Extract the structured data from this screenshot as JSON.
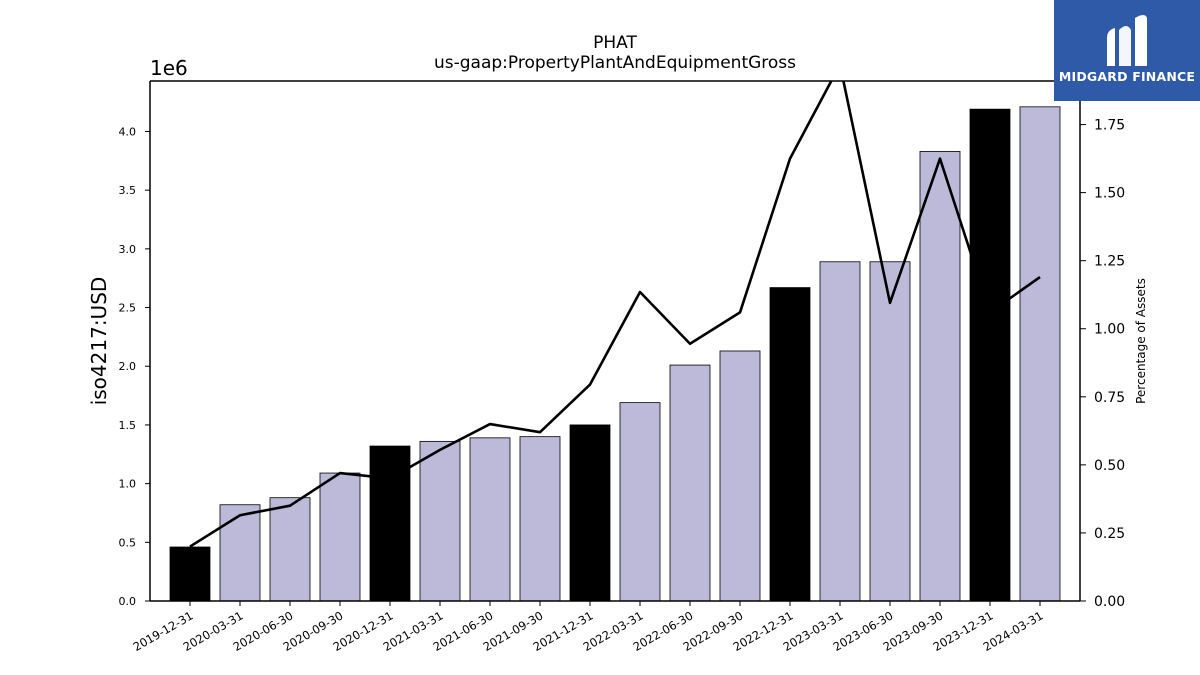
{
  "brand": {
    "name": "MIDGARD FINANCE",
    "bg_color": "#2e5aa8"
  },
  "chart_data": {
    "type": "bar",
    "title": "PHAT",
    "subtitle": "us-gaap:PropertyPlantAndEquipmentGross",
    "ylabel": "iso4217:USD",
    "y2label": "Percentage of Assets",
    "y_scale_label": "1e6",
    "categories": [
      "2019-12-31",
      "2020-03-31",
      "2020-06-30",
      "2020-09-30",
      "2020-12-31",
      "2021-03-31",
      "2021-06-30",
      "2021-09-30",
      "2021-12-31",
      "2022-03-31",
      "2022-06-30",
      "2022-09-30",
      "2022-12-31",
      "2023-03-31",
      "2023-06-30",
      "2023-09-30",
      "2023-12-31",
      "2024-03-31"
    ],
    "values": [
      460000,
      820000,
      880000,
      1090000,
      1320000,
      1360000,
      1390000,
      1400000,
      1500000,
      1690000,
      2010000,
      2130000,
      2670000,
      2890000,
      2890000,
      3830000,
      4190000,
      4210000
    ],
    "bar_colors": [
      "#000000",
      "#bcb9d9",
      "#bcb9d9",
      "#bcb9d9",
      "#000000",
      "#bcb9d9",
      "#bcb9d9",
      "#bcb9d9",
      "#000000",
      "#bcb9d9",
      "#bcb9d9",
      "#bcb9d9",
      "#000000",
      "#bcb9d9",
      "#bcb9d9",
      "#bcb9d9",
      "#000000",
      "#bcb9d9"
    ],
    "ylim": [
      0,
      4430000
    ],
    "yticks": [
      0,
      500000,
      1000000,
      1500000,
      2000000,
      2500000,
      3000000,
      3500000,
      4000000,
      4500000
    ],
    "ytick_labels": [
      "0.0",
      "0.5",
      "1.0",
      "1.5",
      "2.0",
      "2.5",
      "3.0",
      "3.5",
      "4.0",
      "4.5"
    ],
    "line_series": {
      "name": "Percentage of Assets",
      "color": "#000000",
      "values": [
        0.2,
        0.315,
        0.35,
        0.47,
        0.45,
        0.555,
        0.65,
        0.62,
        0.795,
        1.135,
        0.945,
        1.06,
        1.625,
        1.97,
        1.095,
        1.625,
        1.06,
        1.19
      ]
    },
    "y2lim": [
      0,
      1.91
    ],
    "y2ticks": [
      0,
      0.25,
      0.5,
      0.75,
      1.0,
      1.25,
      1.5,
      1.75
    ],
    "y2tick_labels": [
      "0.00",
      "0.25",
      "0.50",
      "0.75",
      "1.00",
      "1.25",
      "1.50",
      "1.75"
    ],
    "grid": false,
    "legend": "none"
  }
}
